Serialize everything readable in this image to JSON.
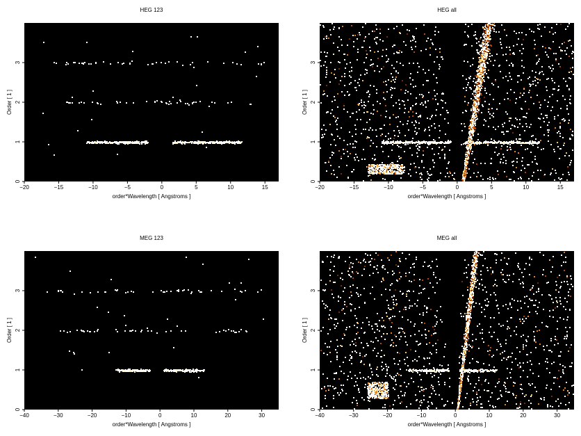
{
  "figure": {
    "background": "#ffffff",
    "plot_background": "#000000",
    "colormap": [
      "#3a0a00",
      "#7a2a04",
      "#b84a08",
      "#e8801a",
      "#f8c060",
      "#fff4c0",
      "#ffffff"
    ]
  },
  "chart_data": [
    {
      "type": "heatmap",
      "title": "HEG 123",
      "xlabel": "order*Wavelength [ Angstroms ]",
      "ylabel": "Order [ 1 ]",
      "xlim": [
        -20,
        17
      ],
      "ylim": [
        0,
        4
      ],
      "xticks": [
        -20,
        -15,
        -10,
        -5,
        0,
        5,
        10,
        15
      ],
      "yticks": [
        0,
        1,
        2,
        3
      ],
      "xtick_labels": [
        "−20",
        "−15",
        "−10",
        "−5",
        "0",
        "5",
        "10",
        "15"
      ],
      "ytick_labels": [
        "0",
        "1",
        "2",
        "3"
      ],
      "features": [
        {
          "kind": "band",
          "order": 1,
          "x_range": [
            -11,
            -2
          ],
          "intensity": 1.0
        },
        {
          "kind": "band",
          "order": 1,
          "x_range": [
            1.5,
            11.5
          ],
          "intensity": 1.0
        },
        {
          "kind": "sparse",
          "order": 2,
          "x_range": [
            -14,
            15
          ]
        },
        {
          "kind": "sparse",
          "order": 3,
          "x_range": [
            -17,
            16
          ]
        }
      ]
    },
    {
      "type": "heatmap",
      "title": "HEG all",
      "xlabel": "order*Wavelength [ Angstroms ]",
      "ylabel": "Order [ 1 ]",
      "xlim": [
        -20,
        17
      ],
      "ylim": [
        0,
        4
      ],
      "xticks": [
        -20,
        -15,
        -10,
        -5,
        0,
        5,
        10,
        15
      ],
      "yticks": [
        0,
        1,
        2,
        3
      ],
      "xtick_labels": [
        "−20",
        "−15",
        "−10",
        "−5",
        "0",
        "5",
        "10",
        "15"
      ],
      "ytick_labels": [
        "0",
        "1",
        "2",
        "3"
      ],
      "features": [
        {
          "kind": "band",
          "order": 1,
          "x_range": [
            -11,
            -1
          ],
          "intensity": 1.0
        },
        {
          "kind": "band",
          "order": 1,
          "x_range": [
            1,
            12
          ],
          "intensity": 1.0
        },
        {
          "kind": "wedge",
          "x_at_order_0": 0.8,
          "x_at_order_4": 4.5
        },
        {
          "kind": "blob",
          "x_range": [
            -13,
            -8
          ],
          "order_range": [
            0.2,
            0.45
          ]
        },
        {
          "kind": "background",
          "level": "dense"
        }
      ]
    },
    {
      "type": "heatmap",
      "title": "MEG 123",
      "xlabel": "order*Wavelength [ Angstroms ]",
      "ylabel": "Order [ 1 ]",
      "xlim": [
        -40,
        35
      ],
      "ylim": [
        0,
        4
      ],
      "xticks": [
        -40,
        -30,
        -20,
        -10,
        0,
        10,
        20,
        30
      ],
      "yticks": [
        0,
        1,
        2,
        3
      ],
      "xtick_labels": [
        "−40",
        "−30",
        "−20",
        "−10",
        "0",
        "10",
        "20",
        "30"
      ],
      "ytick_labels": [
        "0",
        "1",
        "2",
        "3"
      ],
      "features": [
        {
          "kind": "band",
          "order": 1,
          "x_range": [
            -13,
            -3
          ],
          "intensity": 1.0
        },
        {
          "kind": "band",
          "order": 1,
          "x_range": [
            1,
            13
          ],
          "intensity": 1.0
        },
        {
          "kind": "sparse",
          "order": 2,
          "x_range": [
            -30,
            26
          ]
        },
        {
          "kind": "sparse",
          "order": 3,
          "x_range": [
            -34,
            30
          ]
        }
      ]
    },
    {
      "type": "heatmap",
      "title": "MEG all",
      "xlabel": "order*Wavelength [ Angstroms ]",
      "ylabel": "Order [ 1 ]",
      "xlim": [
        -40,
        35
      ],
      "ylim": [
        0,
        4
      ],
      "xticks": [
        -40,
        -30,
        -20,
        -10,
        0,
        10,
        20,
        30
      ],
      "yticks": [
        0,
        1,
        2,
        3
      ],
      "xtick_labels": [
        "−40",
        "−30",
        "−20",
        "−10",
        "0",
        "10",
        "20",
        "30"
      ],
      "ytick_labels": [
        "0",
        "1",
        "2",
        "3"
      ],
      "features": [
        {
          "kind": "band",
          "order": 1,
          "x_range": [
            -14,
            -2
          ],
          "intensity": 1.0
        },
        {
          "kind": "band",
          "order": 1,
          "x_range": [
            1,
            12
          ],
          "intensity": 1.0
        },
        {
          "kind": "wedge",
          "x_at_order_0": 0.5,
          "x_at_order_4": 6.0
        },
        {
          "kind": "blob",
          "x_range": [
            -26,
            -20
          ],
          "order_range": [
            0.3,
            0.7
          ]
        },
        {
          "kind": "background",
          "level": "dense"
        }
      ]
    }
  ]
}
